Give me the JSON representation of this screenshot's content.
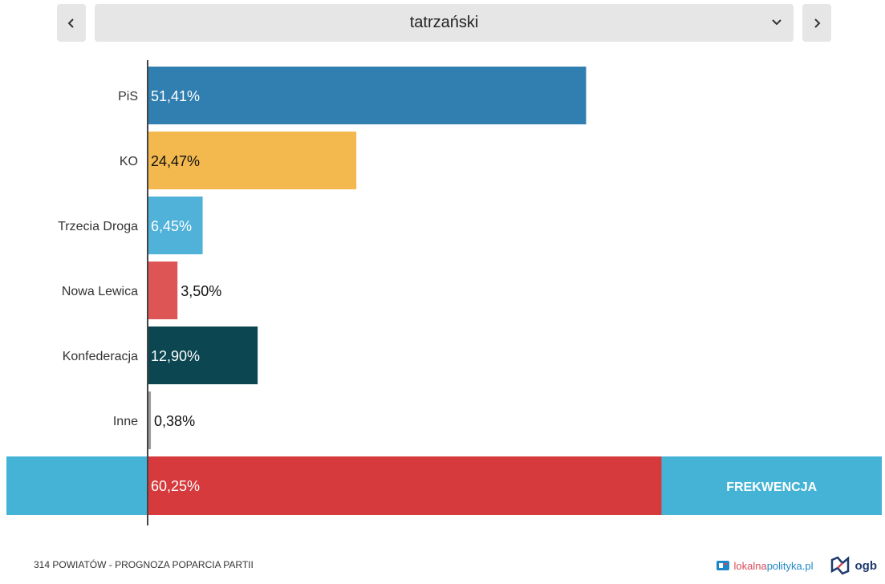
{
  "selector": {
    "value": "tatrzański"
  },
  "icons": {
    "prev": "chevron-left-icon",
    "next": "chevron-right-icon",
    "dropdown": "chevron-down-icon"
  },
  "chart_data": {
    "type": "bar",
    "orientation": "horizontal",
    "categories": [
      "PiS",
      "KO",
      "Trzecia Droga",
      "Nowa Lewica",
      "Konfederacja",
      "Inne"
    ],
    "values": [
      51.41,
      24.47,
      6.45,
      3.5,
      12.9,
      0.38
    ],
    "value_labels": [
      "51,41%",
      "24,47%",
      "6,45%",
      "3,50%",
      "12,90%",
      "0,38%"
    ],
    "colors": [
      "#317fb0",
      "#f3b94f",
      "#50b2d9",
      "#dd5555",
      "#0b4651",
      "#9a9a9a"
    ],
    "xlim": [
      0,
      60
    ],
    "grid": false,
    "turnout": {
      "value": 60.25,
      "label": "60,25%",
      "title": "FREKWENCJA",
      "color": "#d63a3d",
      "background": "#44b3d6"
    }
  },
  "footer": {
    "caption": "314 POWIATÓW - PROGNOZA POPARCIA PARTII",
    "brand_lokalna": "lokalna",
    "brand_polityka": "polityka.pl",
    "brand_ogb": "ogb"
  }
}
